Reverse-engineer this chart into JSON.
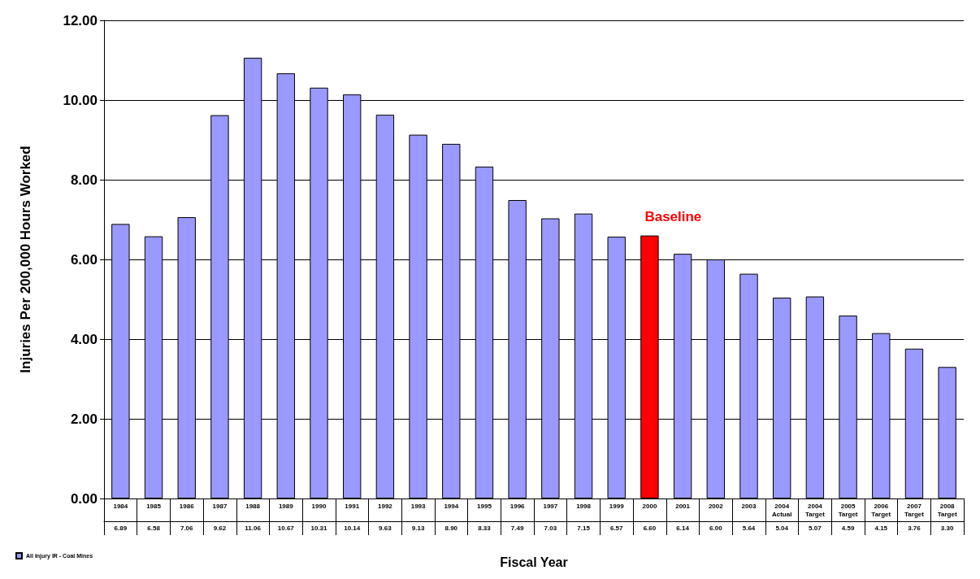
{
  "chart_data": {
    "type": "bar",
    "xlabel": "Fiscal Year",
    "ylabel": "Injuries Per 200,000 Hours Worked",
    "categories": [
      "1984",
      "1985",
      "1986",
      "1987",
      "1988",
      "1989",
      "1990",
      "1991",
      "1992",
      "1993",
      "1994",
      "1995",
      "1996",
      "1997",
      "1998",
      "1999",
      "2000",
      "2001",
      "2002",
      "2003",
      "2004 Actual",
      "2004 Target",
      "2005 Target",
      "2006 Target",
      "2007 Target",
      "2008 Target"
    ],
    "series": [
      {
        "name": "All Injury IR - Coal Mines",
        "color": "#9999ff",
        "values": [
          6.89,
          6.58,
          7.06,
          9.62,
          11.06,
          10.67,
          10.31,
          10.14,
          9.63,
          9.13,
          8.9,
          8.33,
          7.49,
          7.03,
          7.15,
          6.57,
          6.6,
          6.14,
          6.0,
          5.64,
          5.04,
          5.07,
          4.59,
          4.15,
          3.76,
          3.3
        ],
        "value_labels": [
          "6.89",
          "6.58",
          "7.06",
          "9.62",
          "11.06",
          "10.67",
          "10.31",
          "10.14",
          "9.63",
          "9.13",
          "8.90",
          "8.33",
          "7.49",
          "7.03",
          "7.15",
          "6.57",
          "6.60",
          "6.14",
          "6.00",
          "5.64",
          "5.04",
          "5.07",
          "4.59",
          "4.15",
          "3.76",
          "3.30"
        ],
        "colors": [
          "#9999ff",
          "#9999ff",
          "#9999ff",
          "#9999ff",
          "#9999ff",
          "#9999ff",
          "#9999ff",
          "#9999ff",
          "#9999ff",
          "#9999ff",
          "#9999ff",
          "#9999ff",
          "#9999ff",
          "#9999ff",
          "#9999ff",
          "#9999ff",
          "#ff0000",
          "#9999ff",
          "#9999ff",
          "#9999ff",
          "#9999ff",
          "#9999ff",
          "#9999ff",
          "#9999ff",
          "#9999ff",
          "#9999ff"
        ]
      }
    ],
    "ylim": [
      0,
      12
    ],
    "yticks": [
      {
        "value": 0,
        "label": "0.00"
      },
      {
        "value": 2,
        "label": "2.00"
      },
      {
        "value": 4,
        "label": "4.00"
      },
      {
        "value": 6,
        "label": "6.00"
      },
      {
        "value": 8,
        "label": "8.00"
      },
      {
        "value": 10,
        "label": "10.00"
      },
      {
        "value": 12,
        "label": "12.00"
      }
    ],
    "grid": "y",
    "legend": "bottom left",
    "annotations": [
      "Baseline"
    ]
  }
}
